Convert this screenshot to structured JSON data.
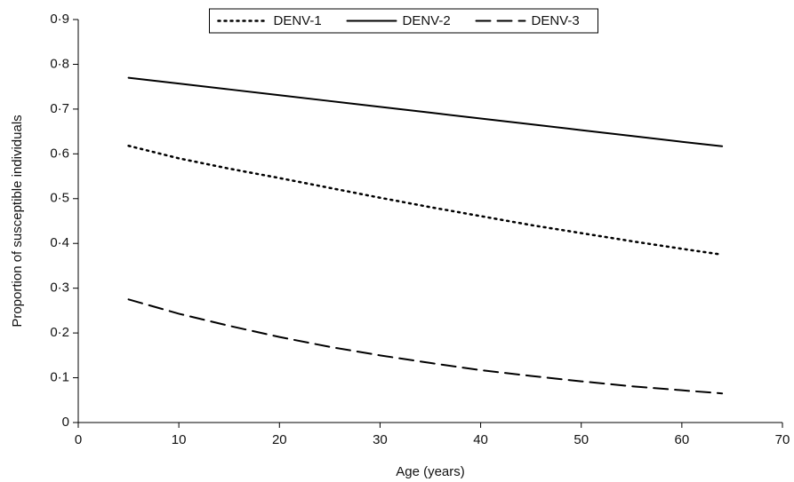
{
  "chart_data": {
    "type": "line",
    "x_label": "Age (years)",
    "y_label": "Proportion of susceptible individuals",
    "x": [
      5,
      10,
      15,
      20,
      25,
      30,
      35,
      40,
      45,
      50,
      55,
      60,
      64
    ],
    "series": [
      {
        "name": "DENV-1",
        "color": "#000000",
        "style": "dotted",
        "values": [
          0.618,
          0.59,
          0.567,
          0.546,
          0.524,
          0.502,
          0.481,
          0.461,
          0.441,
          0.423,
          0.405,
          0.388,
          0.375
        ]
      },
      {
        "name": "DENV-2",
        "color": "#000000",
        "style": "solid",
        "values": [
          0.77,
          0.757,
          0.744,
          0.731,
          0.718,
          0.705,
          0.692,
          0.679,
          0.666,
          0.653,
          0.64,
          0.627,
          0.617
        ]
      },
      {
        "name": "DENV-3",
        "color": "#000000",
        "style": "dashed",
        "values": [
          0.275,
          0.243,
          0.216,
          0.191,
          0.169,
          0.15,
          0.133,
          0.117,
          0.104,
          0.092,
          0.081,
          0.072,
          0.065
        ]
      }
    ],
    "xlim": [
      0,
      70
    ],
    "xticks": [
      0,
      10,
      20,
      30,
      40,
      50,
      60,
      70
    ],
    "ylim": [
      0,
      0.9
    ],
    "yticks": [
      0,
      {
        "value": 0.1,
        "label": "0·1"
      },
      {
        "value": 0.2,
        "label": "0·2"
      },
      {
        "value": 0.3,
        "label": "0·3"
      },
      {
        "value": 0.4,
        "label": "0·4"
      },
      {
        "value": 0.5,
        "label": "0·5"
      },
      {
        "value": 0.6,
        "label": "0·6"
      },
      {
        "value": 0.7,
        "label": "0·7"
      },
      {
        "value": 0.8,
        "label": "0·8"
      },
      {
        "value": 0.9,
        "label": "0·9"
      }
    ],
    "grid": false,
    "legend": "upper center"
  }
}
